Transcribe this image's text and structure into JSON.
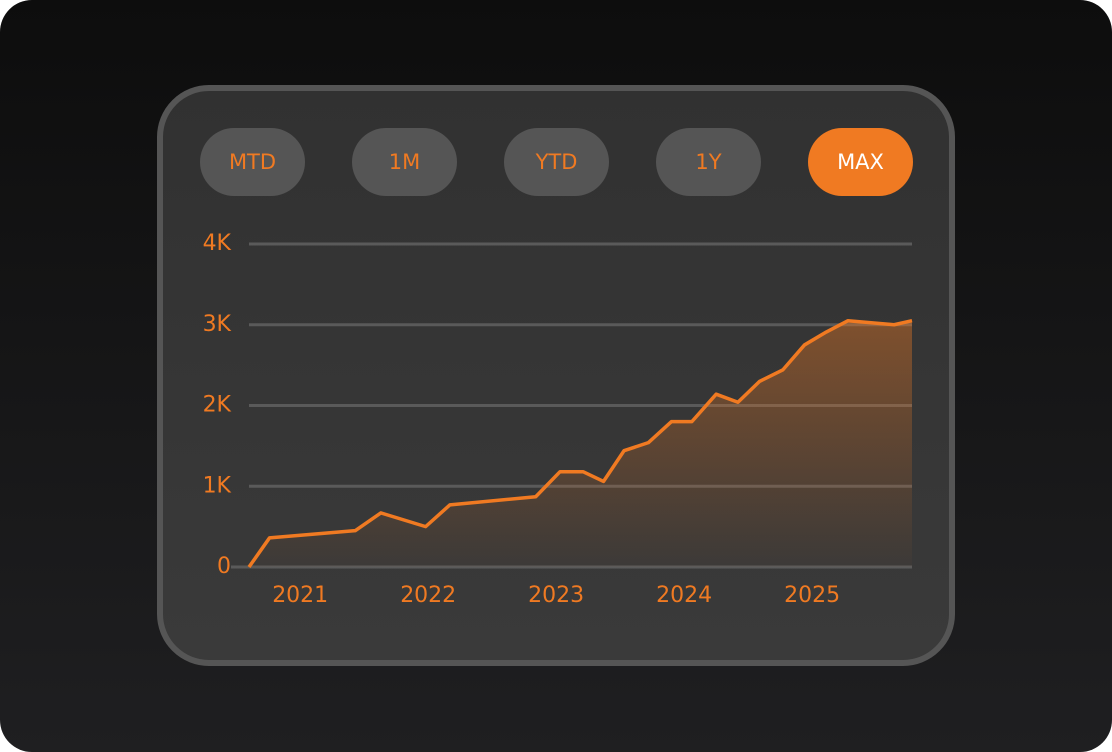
{
  "buttons": [
    {
      "label": "MTD",
      "selected": false
    },
    {
      "label": "1M",
      "selected": false
    },
    {
      "label": "YTD",
      "selected": false
    },
    {
      "label": "1Y",
      "selected": false
    },
    {
      "label": "MAX",
      "selected": true
    }
  ],
  "chart_data": {
    "type": "area",
    "color": "#f07a22",
    "x": [
      2020.6,
      2020.76,
      2021.43,
      2021.63,
      2021.98,
      2022.17,
      2022.84,
      2023.03,
      2023.21,
      2023.37,
      2023.53,
      2023.72,
      2023.9,
      2024.06,
      2024.25,
      2024.42,
      2024.59,
      2024.77,
      2024.94,
      2025.11,
      2025.28,
      2025.64,
      2025.78
    ],
    "values": [
      0,
      360,
      450,
      670,
      500,
      770,
      870,
      1180,
      1180,
      1060,
      1440,
      1540,
      1800,
      1800,
      2140,
      2040,
      2300,
      2440,
      2750,
      2910,
      3050,
      3000,
      3050
    ],
    "xlim": [
      2020.6,
      2025.78
    ],
    "xticks": [
      2021,
      2022,
      2023,
      2024,
      2025
    ],
    "ylim": [
      0,
      4000
    ],
    "yticks": [
      0,
      {
        "value": 1000,
        "label": "1K"
      },
      {
        "value": 2000,
        "label": "2K"
      },
      {
        "value": 3000,
        "label": "3K"
      },
      {
        "value": 4000,
        "label": "4K"
      }
    ],
    "grid": true
  }
}
